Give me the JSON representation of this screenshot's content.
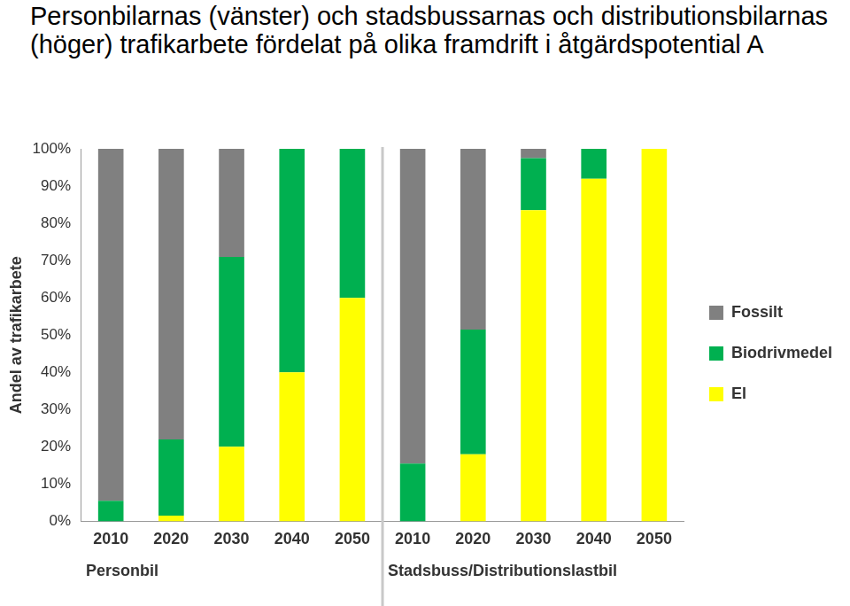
{
  "chart_data": {
    "type": "bar",
    "title": "Personbilarnas (vänster) och stadsbussarnas och distributionsbilarnas (höger) trafikarbete fördelat på olika framdrift i åtgärdspotential A",
    "y_label": "Andel av trafikarbete",
    "categories": [
      "2010",
      "2020",
      "2030",
      "2040",
      "2050",
      "2010",
      "2020",
      "2030",
      "2040",
      "2050"
    ],
    "groups": [
      "Personbil",
      "Stadsbuss/Distributionslastbil"
    ],
    "series": [
      {
        "name": "El",
        "color": "#ffff00",
        "values": [
          0,
          1.5,
          20,
          40,
          60,
          0,
          18,
          83.5,
          92,
          100
        ]
      },
      {
        "name": "Biodrivmedel",
        "color": "#00b050",
        "values": [
          5.5,
          20.5,
          51,
          60,
          40,
          15.5,
          33.5,
          14,
          8,
          0
        ]
      },
      {
        "name": "Fossilt",
        "color": "#808080",
        "values": [
          94.5,
          78,
          29,
          0,
          0,
          84.5,
          48.5,
          2.5,
          0,
          0
        ]
      }
    ],
    "stacked": true,
    "ylim": [
      0,
      100
    ],
    "yticks": [
      {
        "value": 0,
        "label": "0%"
      },
      {
        "value": 10,
        "label": "10%"
      },
      {
        "value": 20,
        "label": "20%"
      },
      {
        "value": 30,
        "label": "30%"
      },
      {
        "value": 40,
        "label": "40%"
      },
      {
        "value": 50,
        "label": "50%"
      },
      {
        "value": 60,
        "label": "60%"
      },
      {
        "value": 70,
        "label": "70%"
      },
      {
        "value": 80,
        "label": "80%"
      },
      {
        "value": 90,
        "label": "90%"
      },
      {
        "value": 100,
        "label": "100%"
      }
    ],
    "grid": false,
    "legend": "right"
  }
}
